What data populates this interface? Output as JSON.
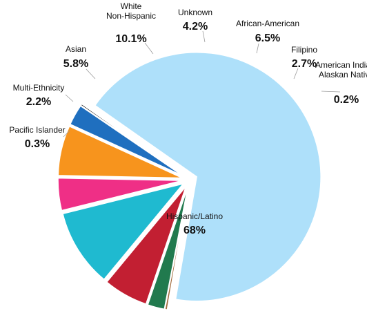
{
  "chart_data": {
    "type": "pie",
    "title": "",
    "slices": [
      {
        "label": [
          "Hispanic/Latino"
        ],
        "value_label": "68%",
        "value": 68,
        "color": "#aee0fa"
      },
      {
        "label": [
          "Pacific Islander"
        ],
        "value_label": "0.3%",
        "value": 0.3,
        "color": "#a0693a"
      },
      {
        "label": [
          "Multi-Ethnicity"
        ],
        "value_label": "2.2%",
        "value": 2.2,
        "color": "#217a4e"
      },
      {
        "label": [
          "Asian"
        ],
        "value_label": "5.8%",
        "value": 5.8,
        "color": "#c21f32"
      },
      {
        "label": [
          "White",
          "Non-Hispanic"
        ],
        "value_label": "10.1%",
        "value": 10.1,
        "color": "#1fbad0"
      },
      {
        "label": [
          "Unknown"
        ],
        "value_label": "4.2%",
        "value": 4.2,
        "color": "#ef2f86"
      },
      {
        "label": [
          "African-American"
        ],
        "value_label": "6.5%",
        "value": 6.5,
        "color": "#f7941d"
      },
      {
        "label": [
          "Filipino"
        ],
        "value_label": "2.7%",
        "value": 2.7,
        "color": "#1f6fbf"
      },
      {
        "label": [
          "American Indian/",
          "Alaskan Native"
        ],
        "value_label": "0.2%",
        "value": 0.2,
        "color": "#111111"
      }
    ]
  }
}
